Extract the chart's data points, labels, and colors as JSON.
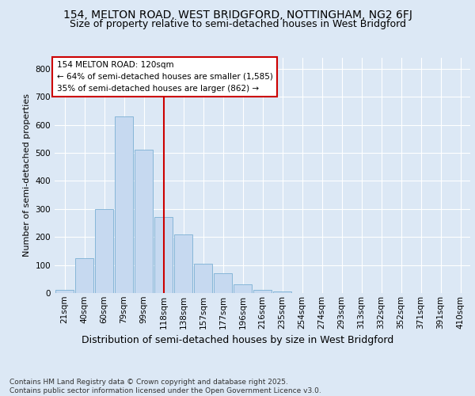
{
  "title1": "154, MELTON ROAD, WEST BRIDGFORD, NOTTINGHAM, NG2 6FJ",
  "title2": "Size of property relative to semi-detached houses in West Bridgford",
  "xlabel": "Distribution of semi-detached houses by size in West Bridgford",
  "ylabel": "Number of semi-detached properties",
  "bar_labels": [
    "21sqm",
    "40sqm",
    "60sqm",
    "79sqm",
    "99sqm",
    "118sqm",
    "138sqm",
    "157sqm",
    "177sqm",
    "196sqm",
    "216sqm",
    "235sqm",
    "254sqm",
    "274sqm",
    "293sqm",
    "313sqm",
    "332sqm",
    "352sqm",
    "371sqm",
    "391sqm",
    "410sqm"
  ],
  "bar_values": [
    10,
    125,
    300,
    630,
    510,
    270,
    210,
    105,
    70,
    30,
    10,
    5,
    0,
    0,
    0,
    0,
    0,
    0,
    0,
    0,
    0
  ],
  "bar_color": "#c6d9f0",
  "bar_edgecolor": "#7bafd4",
  "vline_x": 5,
  "vline_color": "#cc0000",
  "annotation_title": "154 MELTON ROAD: 120sqm",
  "annotation_line1": "← 64% of semi-detached houses are smaller (1,585)",
  "annotation_line2": "35% of semi-detached houses are larger (862) →",
  "annotation_box_color": "#cc0000",
  "background_color": "#dce8f5",
  "plot_bg_color": "#dce8f5",
  "footer1": "Contains HM Land Registry data © Crown copyright and database right 2025.",
  "footer2": "Contains public sector information licensed under the Open Government Licence v3.0.",
  "ylim": [
    0,
    840
  ],
  "yticks": [
    0,
    100,
    200,
    300,
    400,
    500,
    600,
    700,
    800
  ],
  "title1_fontsize": 10,
  "title2_fontsize": 9,
  "xlabel_fontsize": 9,
  "ylabel_fontsize": 8,
  "tick_fontsize": 7.5,
  "footer_fontsize": 6.5,
  "ann_fontsize": 7.5
}
